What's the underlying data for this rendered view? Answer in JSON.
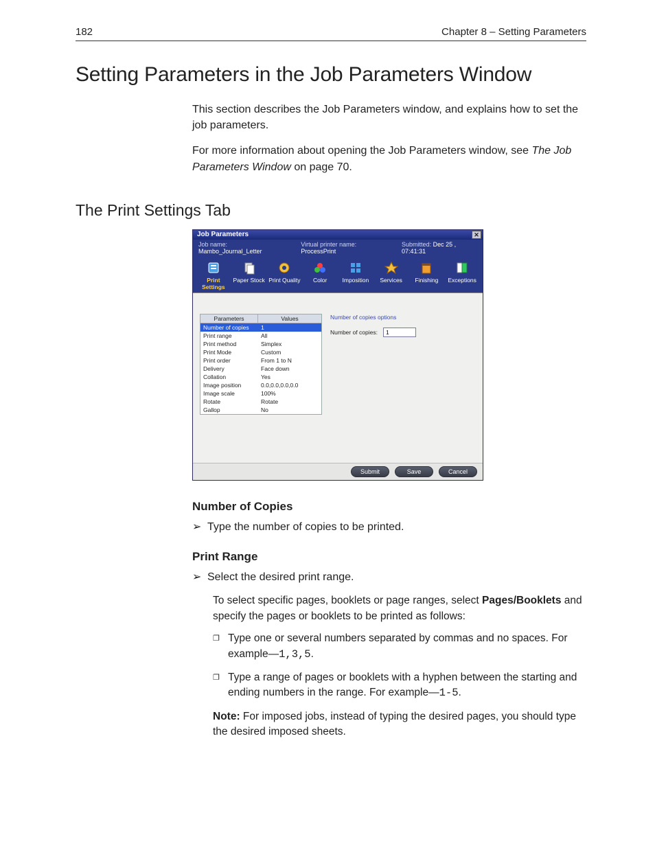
{
  "header": {
    "page_number": "182",
    "chapter": "Chapter 8 – Setting Parameters"
  },
  "title": "Setting Parameters in the Job Parameters Window",
  "intro1": "This section describes the Job Parameters window, and explains how to set the job parameters.",
  "intro2_a": "For more information about opening the Job Parameters window, see ",
  "intro2_ital": "The Job Parameters Window",
  "intro2_b": " on page 70.",
  "section_heading": "The Print Settings Tab",
  "window": {
    "title": "Job Parameters",
    "close_glyph": "✕",
    "info": {
      "job_name_label": "Job name:",
      "job_name_value": "Mambo_Journal_Letter",
      "vp_label": "Virtual printer name:",
      "vp_value": "ProcessPrint",
      "submitted_label": "Submitted:",
      "submitted_value": "Dec 25 , 07:41:31"
    },
    "tabs": [
      {
        "label": "Print Settings",
        "icon": "print-settings-icon",
        "active": true
      },
      {
        "label": "Paper Stock",
        "icon": "paper-stock-icon"
      },
      {
        "label": "Print Quality",
        "icon": "print-quality-icon"
      },
      {
        "label": "Color",
        "icon": "color-icon"
      },
      {
        "label": "Imposition",
        "icon": "imposition-icon"
      },
      {
        "label": "Services",
        "icon": "services-icon"
      },
      {
        "label": "Finishing",
        "icon": "finishing-icon"
      },
      {
        "label": "Exceptions",
        "icon": "exceptions-icon"
      }
    ],
    "param_table": {
      "head_col1": "Parameters",
      "head_col2": "Values",
      "rows": [
        {
          "p": "Number of copies",
          "v": "1",
          "selected": true
        },
        {
          "p": "Print range",
          "v": "All"
        },
        {
          "p": "Print method",
          "v": "Simplex"
        },
        {
          "p": "Print Mode",
          "v": "Custom"
        },
        {
          "p": "Print order",
          "v": "From 1 to N"
        },
        {
          "p": "Delivery",
          "v": "Face down"
        },
        {
          "p": "Collation",
          "v": "Yes"
        },
        {
          "p": "Image position",
          "v": "0.0,0.0,0.0,0.0"
        },
        {
          "p": "Image scale",
          "v": "100%"
        },
        {
          "p": "Rotate",
          "v": "Rotate"
        },
        {
          "p": "Gallop",
          "v": "No"
        }
      ]
    },
    "options": {
      "header": "Number of copies options",
      "field_label": "Number of copies:",
      "field_value": "1"
    },
    "buttons": {
      "submit": "Submit",
      "save": "Save",
      "cancel": "Cancel"
    }
  },
  "sub1": {
    "heading": "Number of Copies",
    "step": "Type the number of copies to be printed."
  },
  "sub2": {
    "heading": "Print Range",
    "step": "Select the desired print range.",
    "lead_a": "To select specific pages, booklets or page ranges, select ",
    "lead_bold": "Pages/Booklets",
    "lead_b": " and specify the pages or booklets to be printed as follows:",
    "bullet1_a": "Type one or several numbers separated by commas and no spaces. For example—",
    "bullet1_mono": "1,3,5",
    "bullet1_b": ".",
    "bullet2_a": "Type a range of pages or booklets with a hyphen between the starting and ending numbers in the range. For example—",
    "bullet2_mono": "1-5",
    "bullet2_b": ".",
    "note_label": "Note:",
    "note_text": "  For imposed jobs, instead of typing the desired pages, you should type the desired imposed sheets."
  },
  "glyphs": {
    "arrow": "➢",
    "square": "❐"
  },
  "tab_icon_colors": {
    "print_settings": "#4aa0e8",
    "paper_stock": "#e8e8e8",
    "print_quality": "#f0c040",
    "color": "#ff3f3f",
    "imposition": "#4aa0e8",
    "services": "#f0c040",
    "finishing": "#f0a030",
    "exceptions": "#30c860"
  }
}
